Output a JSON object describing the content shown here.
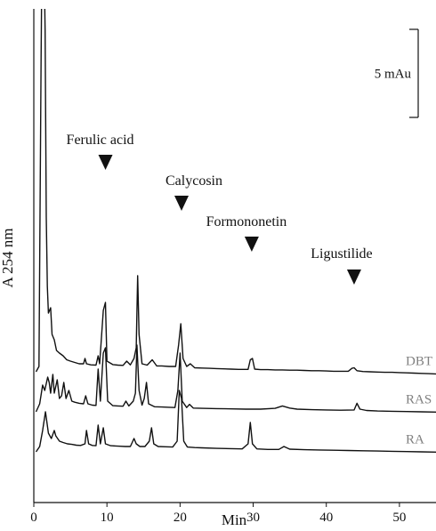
{
  "chart_data": {
    "type": "line",
    "xlabel": "Min",
    "ylabel": "A 254 nm",
    "xlim": [
      0,
      55
    ],
    "x_ticks": [
      0,
      10,
      20,
      30,
      40,
      50
    ],
    "y_unit": "mAu",
    "scale_bar": {
      "label": "5 mAu",
      "value": 5
    },
    "grid": false,
    "series": [
      {
        "name": "DBT",
        "color": "#111111",
        "label_color": "#808080",
        "offset": 30,
        "points": [
          [
            0.3,
            0
          ],
          [
            0.7,
            2
          ],
          [
            1.0,
            118
          ],
          [
            1.1,
            150
          ],
          [
            1.25,
            160
          ],
          [
            1.4,
            155
          ],
          [
            1.55,
            128
          ],
          [
            1.7,
            58
          ],
          [
            1.85,
            32
          ],
          [
            2.0,
            22
          ],
          [
            2.3,
            24
          ],
          [
            2.5,
            14
          ],
          [
            2.8,
            12
          ],
          [
            3.1,
            8
          ],
          [
            3.5,
            7
          ],
          [
            4.0,
            6
          ],
          [
            4.5,
            4.5
          ],
          [
            5.0,
            4
          ],
          [
            5.6,
            3.5
          ],
          [
            6.2,
            3
          ],
          [
            6.8,
            3
          ],
          [
            7.0,
            5
          ],
          [
            7.2,
            3
          ],
          [
            7.8,
            2.6
          ],
          [
            8.5,
            2.5
          ],
          [
            8.8,
            6
          ],
          [
            9.0,
            3
          ],
          [
            9.5,
            23
          ],
          [
            9.8,
            26
          ],
          [
            10.0,
            4
          ],
          [
            10.8,
            2.7
          ],
          [
            11.5,
            2.5
          ],
          [
            12.2,
            2.4
          ],
          [
            12.7,
            4
          ],
          [
            13.2,
            2.6
          ],
          [
            13.7,
            5
          ],
          [
            14.0,
            9
          ],
          [
            14.2,
            36
          ],
          [
            14.4,
            14
          ],
          [
            14.8,
            3
          ],
          [
            15.5,
            2.5
          ],
          [
            16.2,
            4.5
          ],
          [
            16.8,
            2.2
          ],
          [
            17.5,
            2.2
          ],
          [
            18.5,
            2
          ],
          [
            19.4,
            2
          ],
          [
            19.8,
            10
          ],
          [
            20.1,
            18
          ],
          [
            20.4,
            5
          ],
          [
            20.9,
            2
          ],
          [
            21.4,
            3
          ],
          [
            22.0,
            1.5
          ],
          [
            23,
            1.4
          ],
          [
            24,
            1.3
          ],
          [
            25,
            1.2
          ],
          [
            26,
            1.1
          ],
          [
            27,
            1.0
          ],
          [
            28,
            0.9
          ],
          [
            29.3,
            0.9
          ],
          [
            29.6,
            4.5
          ],
          [
            29.9,
            5
          ],
          [
            30.2,
            1
          ],
          [
            31,
            0.8
          ],
          [
            32,
            0.8
          ],
          [
            33,
            0.7
          ],
          [
            34,
            0.7
          ],
          [
            35,
            0.6
          ],
          [
            36,
            0.6
          ],
          [
            37,
            0.5
          ],
          [
            38,
            0.4
          ],
          [
            39,
            0.4
          ],
          [
            40,
            0.3
          ],
          [
            41,
            0.2
          ],
          [
            42,
            0.2
          ],
          [
            43,
            0.2
          ],
          [
            43.5,
            1.3
          ],
          [
            43.8,
            1.5
          ],
          [
            44.2,
            0.4
          ],
          [
            45,
            0.1
          ],
          [
            46,
            0
          ],
          [
            47,
            -0.1
          ],
          [
            48,
            -0.2
          ],
          [
            49,
            -0.2
          ],
          [
            50,
            -0.3
          ],
          [
            51,
            -0.4
          ],
          [
            52,
            -0.5
          ],
          [
            53,
            -0.6
          ],
          [
            54,
            -0.7
          ],
          [
            55,
            -0.8
          ]
        ]
      },
      {
        "name": "RAS",
        "color": "#111111",
        "label_color": "#808080",
        "offset": 15,
        "points": [
          [
            0.3,
            0
          ],
          [
            0.8,
            3
          ],
          [
            1.2,
            10
          ],
          [
            1.5,
            8
          ],
          [
            1.9,
            13
          ],
          [
            2.1,
            11
          ],
          [
            2.3,
            7
          ],
          [
            2.6,
            14
          ],
          [
            2.8,
            7
          ],
          [
            3.2,
            12
          ],
          [
            3.5,
            5
          ],
          [
            3.8,
            6
          ],
          [
            4.1,
            11
          ],
          [
            4.4,
            5
          ],
          [
            4.8,
            8
          ],
          [
            5.2,
            4
          ],
          [
            5.6,
            3.6
          ],
          [
            6.2,
            3.2
          ],
          [
            6.8,
            3
          ],
          [
            7.1,
            6
          ],
          [
            7.4,
            3
          ],
          [
            8.0,
            2.5
          ],
          [
            8.5,
            2.4
          ],
          [
            8.8,
            16
          ],
          [
            9.1,
            4
          ],
          [
            9.5,
            22
          ],
          [
            9.8,
            24
          ],
          [
            10.1,
            4
          ],
          [
            10.8,
            2.3
          ],
          [
            11.5,
            2.2
          ],
          [
            12.2,
            2.1
          ],
          [
            12.6,
            4
          ],
          [
            13.0,
            2.2
          ],
          [
            13.6,
            4
          ],
          [
            13.9,
            7
          ],
          [
            14.1,
            25
          ],
          [
            14.4,
            8
          ],
          [
            14.8,
            2.5
          ],
          [
            15.1,
            5
          ],
          [
            15.4,
            11
          ],
          [
            15.7,
            3
          ],
          [
            16.5,
            1.9
          ],
          [
            17.5,
            1.8
          ],
          [
            18.5,
            1.7
          ],
          [
            19.3,
            1.6
          ],
          [
            19.7,
            8
          ],
          [
            20.0,
            22
          ],
          [
            20.3,
            4
          ],
          [
            20.9,
            1.6
          ],
          [
            21.3,
            2.8
          ],
          [
            21.8,
            1.4
          ],
          [
            23,
            1.3
          ],
          [
            25,
            1.2
          ],
          [
            27,
            1.1
          ],
          [
            29,
            1.0
          ],
          [
            31,
            1.0
          ],
          [
            33,
            1.3
          ],
          [
            34,
            2.2
          ],
          [
            35,
            1.4
          ],
          [
            36,
            1.0
          ],
          [
            38,
            0.8
          ],
          [
            40,
            0.7
          ],
          [
            42,
            0.6
          ],
          [
            43.8,
            0.7
          ],
          [
            44.2,
            3.2
          ],
          [
            44.6,
            1.0
          ],
          [
            45.5,
            0.5
          ],
          [
            47,
            0.3
          ],
          [
            49,
            0.2
          ],
          [
            51,
            0.1
          ],
          [
            53,
            0
          ],
          [
            55,
            -0.1
          ]
        ]
      },
      {
        "name": "RA",
        "color": "#111111",
        "label_color": "#808080",
        "offset": 0,
        "points": [
          [
            0.3,
            0
          ],
          [
            0.8,
            2
          ],
          [
            1.2,
            8
          ],
          [
            1.6,
            15
          ],
          [
            2.0,
            7
          ],
          [
            2.4,
            5
          ],
          [
            2.8,
            8
          ],
          [
            3.0,
            6
          ],
          [
            3.5,
            4
          ],
          [
            4.0,
            3.5
          ],
          [
            4.6,
            3
          ],
          [
            5.2,
            2.8
          ],
          [
            5.8,
            2.5
          ],
          [
            6.4,
            2.4
          ],
          [
            7.0,
            3
          ],
          [
            7.2,
            8
          ],
          [
            7.5,
            3
          ],
          [
            8.0,
            2.4
          ],
          [
            8.5,
            2.3
          ],
          [
            8.8,
            10
          ],
          [
            9.1,
            3
          ],
          [
            9.5,
            9
          ],
          [
            9.8,
            3
          ],
          [
            10.5,
            2.3
          ],
          [
            11.2,
            2.2
          ],
          [
            11.8,
            2.1
          ],
          [
            12.5,
            2
          ],
          [
            13.2,
            2
          ],
          [
            13.7,
            5
          ],
          [
            14.0,
            3
          ],
          [
            14.5,
            2
          ],
          [
            15.2,
            2
          ],
          [
            15.8,
            4
          ],
          [
            16.1,
            9
          ],
          [
            16.4,
            3
          ],
          [
            17,
            2
          ],
          [
            18,
            1.9
          ],
          [
            19,
            1.8
          ],
          [
            19.6,
            4
          ],
          [
            19.9,
            23
          ],
          [
            20.2,
            20
          ],
          [
            20.5,
            4
          ],
          [
            21,
            1.8
          ],
          [
            22,
            1.6
          ],
          [
            23,
            1.5
          ],
          [
            25,
            1.3
          ],
          [
            27,
            1.2
          ],
          [
            28.5,
            1.1
          ],
          [
            29.3,
            3
          ],
          [
            29.6,
            11
          ],
          [
            29.9,
            3
          ],
          [
            30.5,
            1.1
          ],
          [
            32,
            0.9
          ],
          [
            33.5,
            0.9
          ],
          [
            34.2,
            2
          ],
          [
            35,
            1.0
          ],
          [
            37,
            0.8
          ],
          [
            39,
            0.7
          ],
          [
            41,
            0.6
          ],
          [
            43,
            0.5
          ],
          [
            45,
            0.4
          ],
          [
            47,
            0.3
          ],
          [
            49,
            0.2
          ],
          [
            51,
            0.1
          ],
          [
            53,
            0
          ],
          [
            55,
            -0.1
          ]
        ]
      }
    ],
    "annotations": [
      {
        "text": "Ferulic acid",
        "x": 9.8,
        "series": "DBT"
      },
      {
        "text": "Calycosin",
        "x": 20.2,
        "series": "DBT"
      },
      {
        "text": "Formononetin",
        "x": 29.8,
        "series": "DBT"
      },
      {
        "text": "Ligustilide",
        "x": 43.8,
        "series": "DBT"
      }
    ]
  }
}
